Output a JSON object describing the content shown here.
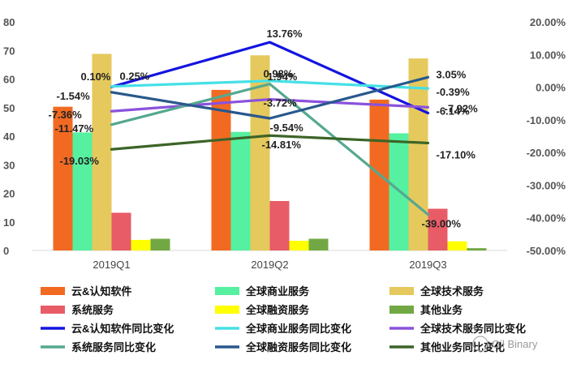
{
  "chart_data": {
    "type": "bar",
    "categories": [
      "2019Q1",
      "2019Q2",
      "2019Q3"
    ],
    "y_left": {
      "ylim": [
        0,
        80
      ],
      "ticks": [
        0,
        10,
        20,
        30,
        40,
        50,
        60,
        70,
        80
      ]
    },
    "y_right": {
      "ylim": [
        -50,
        20
      ],
      "ticks": [
        -50,
        -40,
        -30,
        -20,
        -10,
        0,
        10,
        20
      ],
      "tick_labels": [
        "-50.00%",
        "-40.00%",
        "-30.00%",
        "-20.00%",
        "-10.00%",
        "0.00%",
        "10.00%",
        "20.00%"
      ]
    },
    "bar_series": [
      {
        "name": "云&认知软件",
        "color": "#f26a22",
        "values": [
          50.3,
          56.2,
          52.8
        ]
      },
      {
        "name": "全球商业服务",
        "color": "#55f0a0",
        "values": [
          41.3,
          41.5,
          41.0
        ]
      },
      {
        "name": "全球技术服务",
        "color": "#e5c95c",
        "values": [
          68.8,
          68.3,
          67.2
        ]
      },
      {
        "name": "系统服务",
        "color": "#e85c68",
        "values": [
          13.2,
          17.3,
          14.6
        ]
      },
      {
        "name": "全球融资服务",
        "color": "#ffff00",
        "values": [
          3.7,
          3.4,
          3.2
        ]
      },
      {
        "name": "其他业务",
        "color": "#72a844",
        "values": [
          4.1,
          4.1,
          0.8
        ]
      }
    ],
    "line_series": [
      {
        "name": "云&认知软件同比变化",
        "color": "#1414e0",
        "values": [
          0.1,
          13.76,
          -7.92
        ],
        "labels": [
          "0.10%",
          "13.76%",
          "-7.92%"
        ]
      },
      {
        "name": "全球商业服务同比变化",
        "color": "#45e0e6",
        "values": [
          0.25,
          1.94,
          -0.39
        ],
        "labels": [
          "0.25%",
          "1.94%",
          "-0.39%"
        ]
      },
      {
        "name": "全球技术服务同比变化",
        "color": "#8a52dc",
        "values": [
          -7.36,
          -3.72,
          -6.14
        ],
        "labels": [
          "-7.36%",
          "-3.72%",
          "-6.14%"
        ]
      },
      {
        "name": "系统服务同比变化",
        "color": "#55a890",
        "values": [
          -11.47,
          0.98,
          -39.0
        ],
        "labels": [
          "-11.47%",
          "0.98%",
          "-39.00%"
        ]
      },
      {
        "name": "全球融资服务同比变化",
        "color": "#28588c",
        "values": [
          -1.54,
          -9.54,
          3.05
        ],
        "labels": [
          "-1.54%",
          "-9.54%",
          "3.05%"
        ]
      },
      {
        "name": "其他业务同比变化",
        "color": "#3c6428",
        "values": [
          -19.03,
          -14.81,
          -17.1
        ],
        "labels": [
          "-19.03%",
          "-14.81%",
          "-17.10%"
        ]
      }
    ],
    "legend": "bottom"
  },
  "watermark": "Oil Binary"
}
